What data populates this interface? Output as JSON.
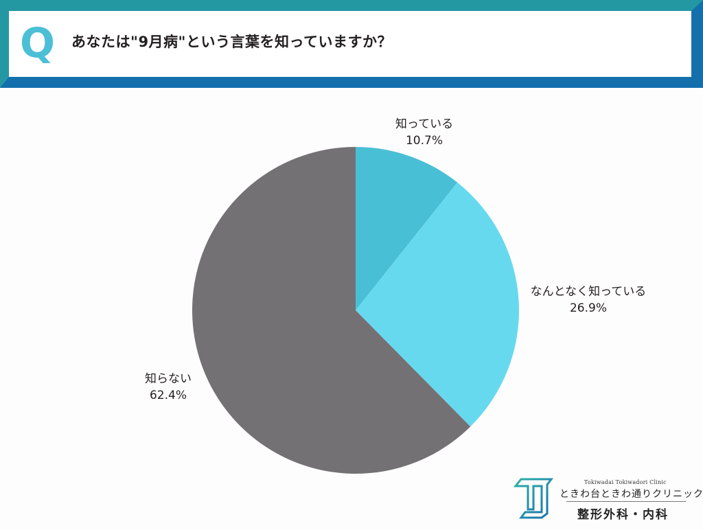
{
  "header": {
    "q_mark": "Q",
    "question": "あなたは\"9月病\"という言葉を知っていますか？",
    "colors": {
      "frame_top": "#2296a2",
      "frame_bottom": "#1470ad",
      "q_mark": "#4bbfd6"
    }
  },
  "chart_data": {
    "type": "pie",
    "title": "あなたは\"9月病\"という言葉を知っていますか？",
    "categories": [
      "知っている",
      "なんとなく知っている",
      "知らない"
    ],
    "values": [
      10.7,
      26.9,
      62.4
    ],
    "colors": [
      "#49bfd5",
      "#67d9ef",
      "#747174"
    ],
    "value_labels": [
      "10.7%",
      "26.9%",
      "62.4%"
    ],
    "start_angle": "12 o'clock, clockwise",
    "legend": "none (labels outside slices)"
  },
  "labels": [
    {
      "name": "知っている",
      "value": "10.7%"
    },
    {
      "name": "なんとなく知っている",
      "value": "26.9%"
    },
    {
      "name": "知らない",
      "value": "62.4%"
    }
  ],
  "logo": {
    "mark": "TC",
    "english": "Tokiwadai Tokiwadori Clinic",
    "japanese": "ときわ台ときわ通りクリニック",
    "department": "整形外科・内科"
  }
}
